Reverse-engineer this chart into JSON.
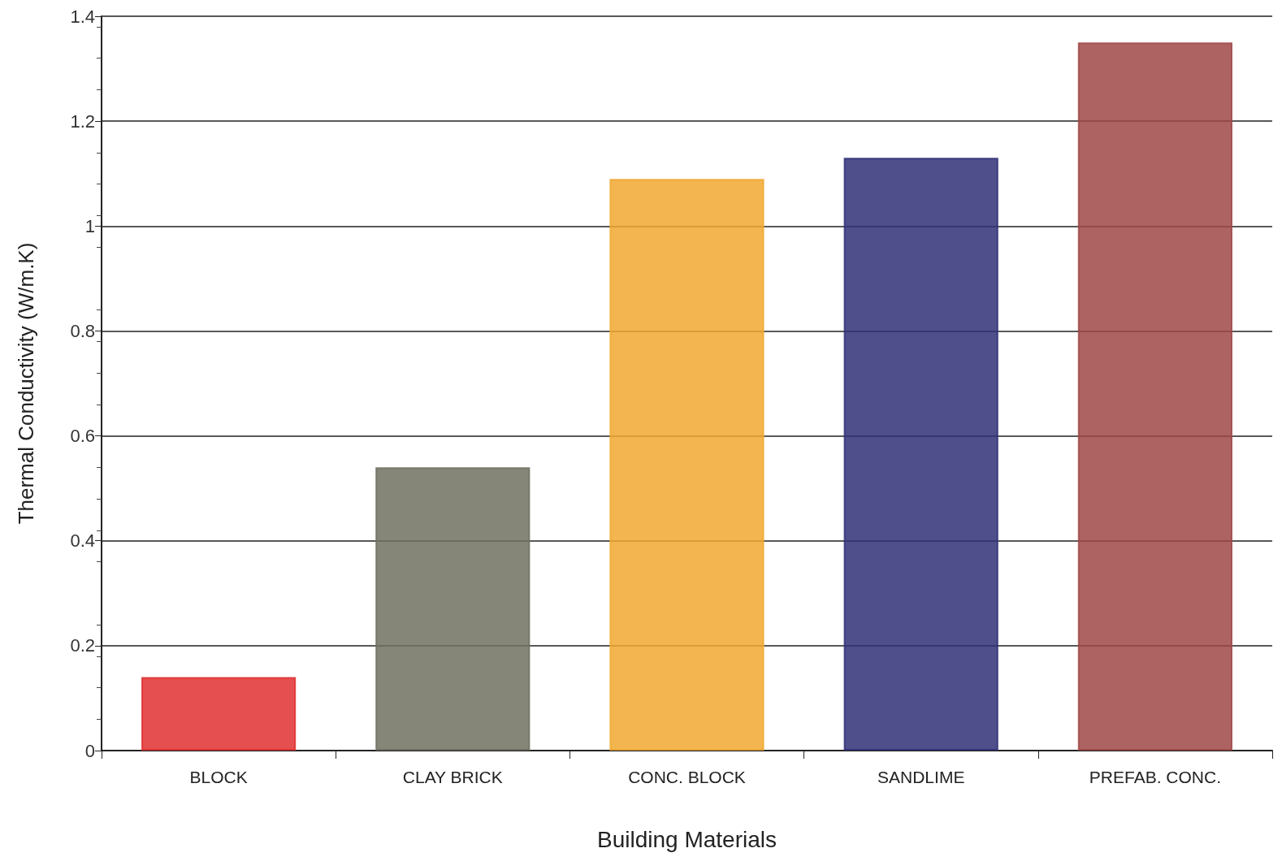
{
  "chart_data": {
    "type": "bar",
    "xlabel": "Building Materials",
    "ylabel": "Thermal Conductivity (W/m.K)",
    "categories": [
      "BLOCK",
      "CLAY BRICK",
      "CONC. BLOCK",
      "SANDLIME",
      "PREFAB. CONC."
    ],
    "values": [
      0.14,
      0.54,
      1.09,
      1.13,
      1.35
    ],
    "colors": [
      "#e03030",
      "#707060",
      "#f0a830",
      "#303078",
      "#a04848"
    ],
    "ylim": [
      0,
      1.4
    ],
    "yticks": [
      0,
      0.2,
      0.4,
      0.6,
      0.8,
      1,
      1.2,
      1.4
    ],
    "grid": "y"
  }
}
